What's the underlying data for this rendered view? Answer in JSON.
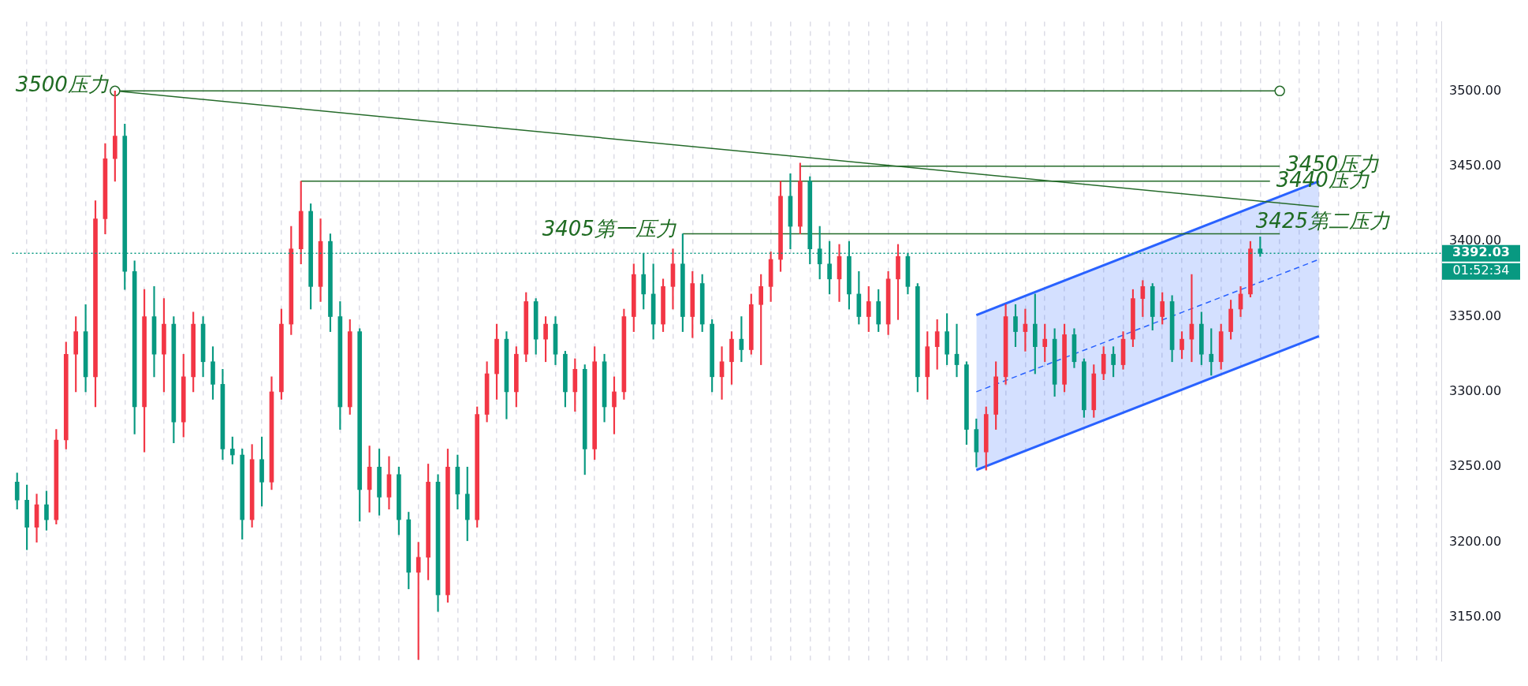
{
  "chart_data": {
    "type": "candlestick",
    "categories": [
      null,
      null,
      null,
      null,
      null,
      null,
      null,
      null,
      null,
      null,
      null,
      null,
      null,
      null,
      null,
      null,
      null,
      null,
      null,
      null,
      null,
      null,
      null,
      null,
      null,
      null,
      null,
      null,
      null,
      null,
      null,
      null,
      null,
      null,
      null,
      null,
      null,
      null,
      null,
      null,
      null,
      null,
      null,
      null,
      null,
      null,
      null,
      null,
      null,
      null,
      null,
      null,
      null,
      null,
      null,
      null,
      null,
      null,
      null,
      null,
      null,
      null,
      null,
      null,
      null,
      null,
      null,
      null,
      null,
      null,
      null,
      null,
      null,
      null,
      null,
      null,
      null,
      null,
      null,
      null,
      null,
      null,
      null,
      null,
      null,
      null,
      null,
      null,
      null,
      null,
      null,
      null,
      null,
      null,
      null,
      null,
      null,
      null,
      null,
      null,
      null,
      null,
      null,
      null,
      null,
      null,
      null,
      null,
      null,
      null,
      null,
      null,
      null,
      null,
      null,
      null,
      null,
      null,
      null,
      null,
      null,
      null,
      null,
      null,
      null,
      null,
      null,
      null,
      null,
      null,
      null,
      null,
      null,
      null,
      null,
      null,
      null,
      null,
      null,
      null,
      null,
      null,
      null,
      null,
      null,
      null
    ],
    "ohlc": [
      [
        3240,
        3246,
        3222,
        3228
      ],
      [
        3228,
        3238,
        3195,
        3210
      ],
      [
        3210,
        3232,
        3200,
        3225
      ],
      [
        3225,
        3234,
        3208,
        3215
      ],
      [
        3215,
        3275,
        3212,
        3268
      ],
      [
        3268,
        3333,
        3262,
        3325
      ],
      [
        3325,
        3350,
        3300,
        3340
      ],
      [
        3340,
        3358,
        3300,
        3310
      ],
      [
        3310,
        3427,
        3290,
        3415
      ],
      [
        3415,
        3465,
        3405,
        3455
      ],
      [
        3455,
        3500,
        3440,
        3470
      ],
      [
        3470,
        3478,
        3368,
        3380
      ],
      [
        3380,
        3387,
        3272,
        3290
      ],
      [
        3290,
        3368,
        3260,
        3350
      ],
      [
        3350,
        3370,
        3310,
        3325
      ],
      [
        3325,
        3362,
        3300,
        3345
      ],
      [
        3345,
        3350,
        3266,
        3280
      ],
      [
        3280,
        3325,
        3270,
        3310
      ],
      [
        3310,
        3353,
        3300,
        3345
      ],
      [
        3345,
        3350,
        3310,
        3320
      ],
      [
        3320,
        3330,
        3295,
        3305
      ],
      [
        3305,
        3315,
        3255,
        3262
      ],
      [
        3262,
        3270,
        3252,
        3258
      ],
      [
        3258,
        3262,
        3202,
        3215
      ],
      [
        3215,
        3265,
        3210,
        3255
      ],
      [
        3255,
        3270,
        3224,
        3240
      ],
      [
        3240,
        3310,
        3235,
        3300
      ],
      [
        3300,
        3355,
        3295,
        3345
      ],
      [
        3345,
        3410,
        3338,
        3395
      ],
      [
        3395,
        3440,
        3385,
        3420
      ],
      [
        3420,
        3425,
        3355,
        3370
      ],
      [
        3370,
        3415,
        3360,
        3400
      ],
      [
        3400,
        3405,
        3340,
        3350
      ],
      [
        3350,
        3360,
        3275,
        3290
      ],
      [
        3290,
        3348,
        3285,
        3340
      ],
      [
        3340,
        3342,
        3214,
        3235
      ],
      [
        3235,
        3264,
        3220,
        3250
      ],
      [
        3250,
        3262,
        3218,
        3230
      ],
      [
        3230,
        3257,
        3222,
        3245
      ],
      [
        3245,
        3250,
        3205,
        3215
      ],
      [
        3215,
        3220,
        3169,
        3180
      ],
      [
        3180,
        3200,
        3122,
        3190
      ],
      [
        3190,
        3252,
        3175,
        3240
      ],
      [
        3240,
        3245,
        3154,
        3165
      ],
      [
        3165,
        3262,
        3160,
        3250
      ],
      [
        3250,
        3258,
        3222,
        3232
      ],
      [
        3232,
        3250,
        3201,
        3215
      ],
      [
        3215,
        3290,
        3210,
        3285
      ],
      [
        3285,
        3320,
        3280,
        3312
      ],
      [
        3312,
        3345,
        3295,
        3335
      ],
      [
        3335,
        3340,
        3282,
        3300
      ],
      [
        3300,
        3330,
        3290,
        3325
      ],
      [
        3325,
        3366,
        3320,
        3360
      ],
      [
        3360,
        3362,
        3325,
        3335
      ],
      [
        3335,
        3350,
        3320,
        3345
      ],
      [
        3345,
        3350,
        3318,
        3325
      ],
      [
        3325,
        3327,
        3290,
        3300
      ],
      [
        3300,
        3322,
        3287,
        3315
      ],
      [
        3315,
        3318,
        3245,
        3262
      ],
      [
        3262,
        3330,
        3255,
        3320
      ],
      [
        3320,
        3325,
        3280,
        3290
      ],
      [
        3290,
        3310,
        3272,
        3300
      ],
      [
        3300,
        3355,
        3295,
        3350
      ],
      [
        3350,
        3385,
        3340,
        3378
      ],
      [
        3378,
        3392,
        3355,
        3365
      ],
      [
        3365,
        3385,
        3335,
        3345
      ],
      [
        3345,
        3375,
        3340,
        3370
      ],
      [
        3370,
        3395,
        3355,
        3385
      ],
      [
        3385,
        3405,
        3340,
        3350
      ],
      [
        3350,
        3380,
        3336,
        3372
      ],
      [
        3372,
        3378,
        3340,
        3345
      ],
      [
        3345,
        3348,
        3300,
        3310
      ],
      [
        3310,
        3330,
        3295,
        3320
      ],
      [
        3320,
        3340,
        3305,
        3335
      ],
      [
        3335,
        3350,
        3320,
        3328
      ],
      [
        3328,
        3365,
        3325,
        3358
      ],
      [
        3358,
        3378,
        3318,
        3370
      ],
      [
        3370,
        3393,
        3360,
        3388
      ],
      [
        3388,
        3440,
        3380,
        3430
      ],
      [
        3430,
        3445,
        3395,
        3410
      ],
      [
        3410,
        3452,
        3405,
        3440
      ],
      [
        3440,
        3443,
        3385,
        3395
      ],
      [
        3395,
        3410,
        3375,
        3385
      ],
      [
        3385,
        3400,
        3365,
        3375
      ],
      [
        3375,
        3398,
        3360,
        3390
      ],
      [
        3390,
        3400,
        3355,
        3365
      ],
      [
        3365,
        3380,
        3345,
        3350
      ],
      [
        3350,
        3370,
        3340,
        3360
      ],
      [
        3360,
        3368,
        3340,
        3345
      ],
      [
        3345,
        3380,
        3338,
        3375
      ],
      [
        3375,
        3398,
        3348,
        3390
      ],
      [
        3390,
        3392,
        3365,
        3370
      ],
      [
        3370,
        3372,
        3300,
        3310
      ],
      [
        3310,
        3340,
        3295,
        3330
      ],
      [
        3330,
        3348,
        3315,
        3340
      ],
      [
        3340,
        3352,
        3318,
        3325
      ],
      [
        3325,
        3345,
        3310,
        3318
      ],
      [
        3318,
        3320,
        3265,
        3275
      ],
      [
        3275,
        3282,
        3250,
        3260
      ],
      [
        3260,
        3290,
        3248,
        3285
      ],
      [
        3285,
        3320,
        3275,
        3310
      ],
      [
        3310,
        3358,
        3305,
        3350
      ],
      [
        3350,
        3358,
        3330,
        3340
      ],
      [
        3340,
        3355,
        3327,
        3345
      ],
      [
        3345,
        3365,
        3312,
        3330
      ],
      [
        3330,
        3345,
        3320,
        3335
      ],
      [
        3335,
        3342,
        3297,
        3305
      ],
      [
        3305,
        3345,
        3300,
        3338
      ],
      [
        3338,
        3342,
        3316,
        3320
      ],
      [
        3320,
        3322,
        3283,
        3288
      ],
      [
        3288,
        3318,
        3283,
        3312
      ],
      [
        3312,
        3330,
        3308,
        3325
      ],
      [
        3325,
        3330,
        3310,
        3318
      ],
      [
        3318,
        3340,
        3315,
        3335
      ],
      [
        3335,
        3368,
        3330,
        3362
      ],
      [
        3362,
        3374,
        3350,
        3370
      ],
      [
        3370,
        3372,
        3341,
        3350
      ],
      [
        3350,
        3366,
        3345,
        3360
      ],
      [
        3360,
        3364,
        3320,
        3328
      ],
      [
        3328,
        3340,
        3322,
        3335
      ],
      [
        3335,
        3378,
        3320,
        3345
      ],
      [
        3345,
        3353,
        3318,
        3325
      ],
      [
        3325,
        3342,
        3311,
        3320
      ],
      [
        3320,
        3345,
        3315,
        3340
      ],
      [
        3340,
        3361,
        3335,
        3355
      ],
      [
        3355,
        3370,
        3350,
        3365
      ],
      [
        3365,
        3400,
        3363,
        3395
      ],
      [
        3395,
        3403,
        3390,
        3392.03
      ],
      null,
      null,
      null,
      null,
      null,
      null,
      null,
      null,
      null,
      null,
      null,
      null,
      null,
      null,
      null,
      null,
      null,
      null
    ],
    "colors": [
      "#089981",
      "#089981",
      "#f23645",
      "#089981",
      "#f23645",
      "#f23645",
      "#f23645",
      "#089981",
      "#f23645",
      "#f23645",
      "#f23645",
      "#089981",
      "#089981",
      "#f23645",
      "#089981",
      "#f23645",
      "#089981",
      "#f23645",
      "#f23645",
      "#089981",
      "#089981",
      "#089981",
      "#089981",
      "#089981",
      "#f23645",
      "#089981",
      "#f23645",
      "#f23645",
      "#f23645",
      "#f23645",
      "#089981",
      "#f23645",
      "#089981",
      "#089981",
      "#f23645",
      "#089981",
      "#f23645",
      "#089981",
      "#f23645",
      "#089981",
      "#089981",
      "#f23645",
      "#f23645",
      "#089981",
      "#f23645",
      "#089981",
      "#089981",
      "#f23645",
      "#f23645",
      "#f23645",
      "#089981",
      "#f23645",
      "#f23645",
      "#089981",
      "#f23645",
      "#089981",
      "#089981",
      "#f23645",
      "#089981",
      "#f23645",
      "#089981",
      "#f23645",
      "#f23645",
      "#f23645",
      "#089981",
      "#089981",
      "#f23645",
      "#f23645",
      "#089981",
      "#f23645",
      "#089981",
      "#089981",
      "#f23645",
      "#f23645",
      "#089981",
      "#f23645",
      "#f23645",
      "#f23645",
      "#f23645",
      "#089981",
      "#f23645",
      "#089981",
      "#089981",
      "#089981",
      "#f23645",
      "#089981",
      "#089981",
      "#f23645",
      "#089981",
      "#f23645",
      "#f23645",
      "#089981",
      "#089981",
      "#f23645",
      "#f23645",
      "#089981",
      "#089981",
      "#089981",
      "#089981",
      "#f23645",
      "#f23645",
      "#f23645",
      "#089981",
      "#f23645",
      "#089981",
      "#f23645",
      "#089981",
      "#f23645",
      "#089981",
      "#089981",
      "#f23645",
      "#f23645",
      "#089981",
      "#f23645",
      "#f23645",
      "#f23645",
      "#089981",
      "#f23645",
      "#089981",
      "#f23645",
      "#f23645",
      "#089981",
      "#089981",
      "#f23645",
      "#f23645",
      "#f23645",
      "#f23645",
      "#089981",
      null,
      null,
      null,
      null,
      null,
      null,
      null,
      null,
      null,
      null,
      null,
      null,
      null,
      null,
      null,
      null,
      null,
      null
    ],
    "series": [
      {
        "type": "line",
        "color": "#256b2a",
        "marker": "circle",
        "values": [
          null,
          null,
          null,
          null,
          null,
          null,
          null,
          null,
          null,
          null,
          3500,
          null,
          null,
          null,
          null,
          null,
          null,
          null,
          null,
          null,
          null,
          null,
          null,
          null,
          null,
          null,
          null,
          null,
          null,
          null,
          null,
          null,
          null,
          null,
          null,
          null,
          null,
          null,
          null,
          null,
          null,
          null,
          null,
          null,
          null,
          null,
          null,
          null,
          null,
          null,
          null,
          null,
          null,
          null,
          null,
          null,
          null,
          null,
          null,
          null,
          null,
          null,
          null,
          null,
          null,
          null,
          null,
          null,
          null,
          null,
          null,
          null,
          null,
          null,
          null,
          null,
          null,
          null,
          null,
          null,
          null,
          null,
          null,
          null,
          null,
          null,
          null,
          null,
          null,
          null,
          null,
          null,
          null,
          null,
          null,
          null,
          null,
          null,
          null,
          null,
          null,
          null,
          null,
          null,
          null,
          null,
          null,
          null,
          null,
          null,
          null,
          null,
          null,
          null,
          null,
          null,
          null,
          null,
          null,
          null,
          null,
          null,
          null,
          null,
          null,
          null,
          null,
          null,
          null,
          3500,
          null,
          null,
          null,
          null,
          null,
          null,
          null,
          null,
          null,
          null,
          null,
          null,
          null,
          null,
          null,
          null
        ]
      },
      {
        "type": "line",
        "color": "#256b2a",
        "values": [
          null,
          null,
          null,
          null,
          null,
          null,
          null,
          null,
          null,
          null,
          3500,
          null,
          null,
          null,
          null,
          null,
          null,
          null,
          null,
          null,
          null,
          null,
          null,
          null,
          null,
          null,
          null,
          null,
          null,
          null,
          null,
          null,
          null,
          null,
          null,
          null,
          null,
          null,
          null,
          null,
          null,
          null,
          null,
          null,
          null,
          null,
          null,
          null,
          null,
          null,
          null,
          null,
          null,
          null,
          null,
          null,
          null,
          null,
          null,
          null,
          null,
          null,
          null,
          null,
          null,
          null,
          null,
          null,
          null,
          null,
          null,
          null,
          null,
          null,
          null,
          null,
          null,
          null,
          null,
          null,
          null,
          null,
          null,
          null,
          null,
          null,
          null,
          null,
          null,
          null,
          null,
          null,
          null,
          null,
          null,
          null,
          null,
          null,
          null,
          null,
          null,
          null,
          null,
          null,
          null,
          null,
          null,
          null,
          null,
          null,
          null,
          null,
          null,
          null,
          null,
          null,
          null,
          null,
          null,
          null,
          null,
          null,
          null,
          null,
          null,
          null,
          null,
          null,
          null,
          null,
          null,
          null,
          null,
          3423,
          null,
          null,
          null,
          null,
          null,
          null,
          null,
          null,
          null,
          null,
          null,
          null
        ]
      },
      {
        "type": "line",
        "color": "#256b2a",
        "values": [
          null,
          null,
          null,
          null,
          null,
          null,
          null,
          null,
          null,
          null,
          null,
          null,
          null,
          null,
          null,
          null,
          null,
          null,
          null,
          null,
          null,
          null,
          null,
          null,
          null,
          null,
          null,
          null,
          null,
          null,
          null,
          null,
          null,
          null,
          null,
          null,
          null,
          null,
          null,
          null,
          null,
          null,
          null,
          null,
          null,
          null,
          null,
          null,
          null,
          null,
          null,
          null,
          null,
          null,
          null,
          null,
          null,
          null,
          null,
          null,
          null,
          null,
          null,
          null,
          null,
          null,
          null,
          null,
          null,
          null,
          null,
          null,
          null,
          null,
          null,
          null,
          null,
          null,
          null,
          null,
          3450,
          null,
          null,
          null,
          null,
          null,
          null,
          null,
          null,
          null,
          null,
          null,
          null,
          null,
          null,
          null,
          null,
          null,
          null,
          null,
          null,
          null,
          null,
          null,
          null,
          null,
          null,
          null,
          null,
          null,
          null,
          null,
          null,
          null,
          null,
          null,
          null,
          null,
          null,
          null,
          null,
          null,
          null,
          null,
          null,
          null,
          null,
          null,
          null,
          3450,
          null,
          null,
          null,
          null,
          null,
          null,
          null,
          null,
          null,
          null,
          null,
          null,
          null,
          null,
          null,
          null
        ]
      },
      {
        "type": "line",
        "color": "#256b2a",
        "values": [
          null,
          null,
          null,
          null,
          null,
          null,
          null,
          null,
          null,
          null,
          null,
          null,
          null,
          null,
          null,
          null,
          null,
          null,
          null,
          null,
          null,
          null,
          null,
          null,
          null,
          null,
          null,
          null,
          null,
          3440,
          null,
          null,
          null,
          null,
          null,
          null,
          null,
          null,
          null,
          null,
          null,
          null,
          null,
          null,
          null,
          null,
          null,
          null,
          null,
          null,
          null,
          null,
          null,
          null,
          null,
          null,
          null,
          null,
          null,
          null,
          null,
          null,
          null,
          null,
          null,
          null,
          null,
          null,
          null,
          null,
          null,
          null,
          null,
          null,
          null,
          null,
          null,
          null,
          null,
          null,
          null,
          null,
          null,
          null,
          null,
          null,
          null,
          null,
          null,
          null,
          null,
          null,
          null,
          null,
          null,
          null,
          null,
          null,
          null,
          null,
          null,
          null,
          null,
          null,
          null,
          null,
          null,
          null,
          null,
          null,
          null,
          null,
          null,
          null,
          null,
          null,
          null,
          null,
          null,
          null,
          null,
          null,
          null,
          null,
          null,
          null,
          null,
          null,
          3440,
          null,
          null,
          null,
          null,
          null,
          null,
          null,
          null,
          null,
          null,
          null,
          null,
          null,
          null,
          null,
          null,
          null
        ]
      },
      {
        "type": "line",
        "color": "#256b2a",
        "values": [
          null,
          null,
          null,
          null,
          null,
          null,
          null,
          null,
          null,
          null,
          null,
          null,
          null,
          null,
          null,
          null,
          null,
          null,
          null,
          null,
          null,
          null,
          null,
          null,
          null,
          null,
          null,
          null,
          null,
          null,
          null,
          null,
          null,
          null,
          null,
          null,
          null,
          null,
          null,
          null,
          null,
          null,
          null,
          null,
          null,
          null,
          null,
          null,
          null,
          null,
          null,
          null,
          null,
          null,
          null,
          null,
          null,
          null,
          null,
          null,
          null,
          null,
          null,
          null,
          null,
          null,
          null,
          null,
          3405,
          null,
          null,
          null,
          null,
          null,
          null,
          null,
          null,
          null,
          null,
          null,
          null,
          null,
          null,
          null,
          null,
          null,
          null,
          null,
          null,
          null,
          null,
          null,
          null,
          null,
          null,
          null,
          null,
          null,
          null,
          null,
          null,
          null,
          null,
          null,
          null,
          null,
          null,
          null,
          null,
          null,
          null,
          null,
          null,
          null,
          null,
          null,
          null,
          null,
          null,
          null,
          null,
          null,
          null,
          null,
          null,
          null,
          null,
          null,
          null,
          3405,
          null,
          null,
          null,
          null,
          null,
          null,
          null,
          null,
          null,
          null,
          null,
          null,
          null,
          null,
          null,
          null
        ]
      },
      {
        "type": "line",
        "color": "#2962ff",
        "line_style": "dashed",
        "values": [
          null,
          null,
          null,
          null,
          null,
          null,
          null,
          null,
          null,
          null,
          null,
          null,
          null,
          null,
          null,
          null,
          null,
          null,
          null,
          null,
          null,
          null,
          null,
          null,
          null,
          null,
          null,
          null,
          null,
          null,
          null,
          null,
          null,
          null,
          null,
          null,
          null,
          null,
          null,
          null,
          null,
          null,
          null,
          null,
          null,
          null,
          null,
          null,
          null,
          null,
          null,
          null,
          null,
          null,
          null,
          null,
          null,
          null,
          null,
          null,
          null,
          null,
          null,
          null,
          null,
          null,
          null,
          null,
          null,
          null,
          null,
          null,
          null,
          null,
          null,
          null,
          null,
          null,
          null,
          null,
          null,
          null,
          null,
          null,
          null,
          null,
          null,
          null,
          null,
          null,
          null,
          null,
          null,
          null,
          null,
          null,
          null,
          null,
          3300,
          null,
          null,
          null,
          null,
          null,
          null,
          null,
          null,
          null,
          null,
          null,
          null,
          null,
          null,
          null,
          null,
          null,
          null,
          null,
          null,
          null,
          null,
          null,
          null,
          null,
          null,
          null,
          null,
          null,
          null,
          null,
          null,
          null,
          null,
          3388,
          null,
          null,
          null,
          null,
          null,
          null,
          null,
          null,
          null,
          null,
          null,
          null
        ],
        "lower": [
          null,
          null,
          null,
          null,
          null,
          null,
          null,
          null,
          null,
          null,
          null,
          null,
          null,
          null,
          null,
          null,
          null,
          null,
          null,
          null,
          null,
          null,
          null,
          null,
          null,
          null,
          null,
          null,
          null,
          null,
          null,
          null,
          null,
          null,
          null,
          null,
          null,
          null,
          null,
          null,
          null,
          null,
          null,
          null,
          null,
          null,
          null,
          null,
          null,
          null,
          null,
          null,
          null,
          null,
          null,
          null,
          null,
          null,
          null,
          null,
          null,
          null,
          null,
          null,
          null,
          null,
          null,
          null,
          null,
          null,
          null,
          null,
          null,
          null,
          null,
          null,
          null,
          null,
          null,
          null,
          null,
          null,
          null,
          null,
          null,
          null,
          null,
          null,
          null,
          null,
          null,
          null,
          null,
          null,
          null,
          null,
          null,
          null,
          3248,
          null,
          null,
          null,
          null,
          null,
          null,
          null,
          null,
          null,
          null,
          null,
          null,
          null,
          null,
          null,
          null,
          null,
          null,
          null,
          null,
          null,
          null,
          null,
          null,
          null,
          null,
          null,
          null,
          null,
          null,
          null,
          null,
          null,
          null,
          3337,
          null,
          null,
          null,
          null,
          null,
          null,
          null,
          null,
          null,
          null,
          null,
          null
        ],
        "upper": [
          null,
          null,
          null,
          null,
          null,
          null,
          null,
          null,
          null,
          null,
          null,
          null,
          null,
          null,
          null,
          null,
          null,
          null,
          null,
          null,
          null,
          null,
          null,
          null,
          null,
          null,
          null,
          null,
          null,
          null,
          null,
          null,
          null,
          null,
          null,
          null,
          null,
          null,
          null,
          null,
          null,
          null,
          null,
          null,
          null,
          null,
          null,
          null,
          null,
          null,
          null,
          null,
          null,
          null,
          null,
          null,
          null,
          null,
          null,
          null,
          null,
          null,
          null,
          null,
          null,
          null,
          null,
          null,
          null,
          null,
          null,
          null,
          null,
          null,
          null,
          null,
          null,
          null,
          null,
          null,
          null,
          null,
          null,
          null,
          null,
          null,
          null,
          null,
          null,
          null,
          null,
          null,
          null,
          null,
          null,
          null,
          null,
          null,
          3351,
          null,
          null,
          null,
          null,
          null,
          null,
          null,
          null,
          null,
          null,
          null,
          null,
          null,
          null,
          null,
          null,
          null,
          null,
          null,
          null,
          null,
          null,
          null,
          null,
          null,
          null,
          null,
          null,
          null,
          null,
          null,
          null,
          null,
          null,
          3440,
          null,
          null,
          null,
          null,
          null,
          null,
          null,
          null,
          null,
          null,
          null,
          null
        ]
      },
      {
        "type": "line",
        "color": "#2962ff",
        "values": [
          null,
          null,
          null,
          null,
          null,
          null,
          null,
          null,
          null,
          null,
          null,
          null,
          null,
          null,
          null,
          null,
          null,
          null,
          null,
          null,
          null,
          null,
          null,
          null,
          null,
          null,
          null,
          null,
          null,
          null,
          null,
          null,
          null,
          null,
          null,
          null,
          null,
          null,
          null,
          null,
          null,
          null,
          null,
          null,
          null,
          null,
          null,
          null,
          null,
          null,
          null,
          null,
          null,
          null,
          null,
          null,
          null,
          null,
          null,
          null,
          null,
          null,
          null,
          null,
          null,
          null,
          null,
          null,
          null,
          null,
          null,
          null,
          null,
          null,
          null,
          null,
          null,
          null,
          null,
          null,
          null,
          null,
          null,
          null,
          null,
          null,
          null,
          null,
          null,
          null,
          null,
          null,
          null,
          null,
          null,
          null,
          null,
          null,
          3351,
          null,
          null,
          null,
          null,
          null,
          null,
          null,
          null,
          null,
          null,
          null,
          null,
          null,
          null,
          null,
          null,
          null,
          null,
          null,
          null,
          null,
          null,
          null,
          null,
          null,
          null,
          null,
          null,
          null,
          null,
          null,
          null,
          null,
          null,
          3440,
          null,
          null,
          null,
          null,
          null,
          null,
          null,
          null,
          null,
          null,
          null,
          null
        ]
      },
      {
        "type": "line",
        "color": "#2962ff",
        "values": [
          null,
          null,
          null,
          null,
          null,
          null,
          null,
          null,
          null,
          null,
          null,
          null,
          null,
          null,
          null,
          null,
          null,
          null,
          null,
          null,
          null,
          null,
          null,
          null,
          null,
          null,
          null,
          null,
          null,
          null,
          null,
          null,
          null,
          null,
          null,
          null,
          null,
          null,
          null,
          null,
          null,
          null,
          null,
          null,
          null,
          null,
          null,
          null,
          null,
          null,
          null,
          null,
          null,
          null,
          null,
          null,
          null,
          null,
          null,
          null,
          null,
          null,
          null,
          null,
          null,
          null,
          null,
          null,
          null,
          null,
          null,
          null,
          null,
          null,
          null,
          null,
          null,
          null,
          null,
          null,
          null,
          null,
          null,
          null,
          null,
          null,
          null,
          null,
          null,
          null,
          null,
          null,
          null,
          null,
          null,
          null,
          null,
          null,
          3248,
          null,
          null,
          null,
          null,
          null,
          null,
          null,
          null,
          null,
          null,
          null,
          null,
          null,
          null,
          null,
          null,
          null,
          null,
          null,
          null,
          null,
          null,
          null,
          null,
          null,
          null,
          null,
          null,
          null,
          null,
          null,
          null,
          null,
          null,
          3337,
          null,
          null,
          null,
          null,
          null,
          null,
          null,
          null,
          null,
          null,
          null,
          null
        ]
      }
    ],
    "annotations": [
      "3500压力",
      "3450压力",
      "3440压力",
      "3425第二压力",
      "3405第一压力",
      "01:52:34"
    ],
    "ref_lines": [
      {
        "axis": "y",
        "value": 3392.03,
        "label": "3392.03",
        "color": "#089981",
        "line_style": "dotted"
      }
    ],
    "ylim": [
      3121,
      3546
    ],
    "yticks": [
      {
        "value": 3150,
        "label": "3150.00"
      },
      {
        "value": 3200,
        "label": "3200.00"
      },
      {
        "value": 3250,
        "label": "3250.00"
      },
      {
        "value": 3300,
        "label": "3300.00"
      },
      {
        "value": 3350,
        "label": "3350.00"
      },
      {
        "value": 3400,
        "label": "3400.00"
      },
      {
        "value": 3450,
        "label": "3450.00"
      },
      {
        "value": 3500,
        "label": "3500.00"
      }
    ],
    "grid": "x",
    "legend": false,
    "tick_labels": "y"
  }
}
